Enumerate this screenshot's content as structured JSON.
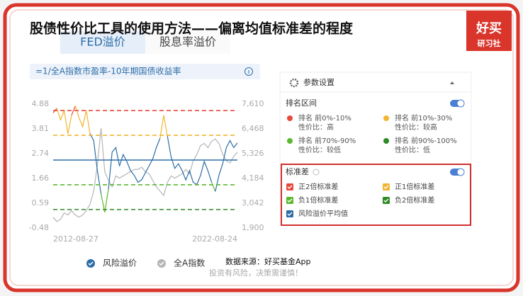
{
  "title": "股债性价比工具的使用方法——偏离均值标准差的程度",
  "logo": {
    "name": "好买",
    "sub": "研习社"
  },
  "tabs": [
    "FED溢价",
    "股息率溢价"
  ],
  "formula": "=1/全A指数市盈率-10年期国债收益率",
  "source": "数据来源：好买基金App",
  "disclaimer": "投资有风险，决策需谨慎！",
  "panel": {
    "title": "参数设置",
    "rank_section": {
      "title": "排名区间",
      "items": [
        {
          "rank": "排名 前0%-10%",
          "label": "性价比：高",
          "color": "#e8493a"
        },
        {
          "rank": "排名 前10%-30%",
          "label": "性价比：较高",
          "color": "#f2b530"
        },
        {
          "rank": "排名 前70%-90%",
          "label": "性价比：较低",
          "color": "#5cb82e"
        },
        {
          "rank": "排名 前90%-100%",
          "label": "性价比：低",
          "color": "#2e8a24"
        }
      ]
    },
    "std_section": {
      "title": "标准差"
    }
  },
  "chart_data": {
    "type": "line",
    "categories": [
      "2012-08-27",
      null,
      null,
      null,
      null,
      null,
      null,
      null,
      null,
      null,
      null,
      null,
      null,
      null,
      null,
      null,
      null,
      null,
      null,
      null,
      null,
      null,
      null,
      null,
      null,
      null,
      null,
      null,
      null,
      null,
      null,
      null,
      null,
      null,
      null,
      null,
      null,
      null,
      null,
      null,
      null,
      null,
      null,
      null,
      null,
      null,
      null,
      null,
      null,
      null,
      "2022-08-24"
    ],
    "series": [
      {
        "name": "全A指数",
        "color": "#b5b5b5",
        "axis": "y2",
        "values": [
          2400,
          2200,
          2300,
          2600,
          2500,
          2700,
          2500,
          2400,
          2500,
          2700,
          3000,
          3600,
          4800,
          6500,
          4500,
          4100,
          3800,
          4300,
          4200,
          4300,
          4400,
          4500,
          4600,
          4600,
          4700,
          4500,
          4400,
          4100,
          3800,
          3600,
          3400,
          4000,
          4300,
          4200,
          4300,
          4400,
          4600,
          4400,
          5000,
          5300,
          5700,
          5800,
          5600,
          5900,
          6000,
          5800,
          5300,
          5000,
          4900,
          5200,
          5400
        ]
      },
      {
        "name": "风险溢价",
        "color": "#2d6ea8",
        "axis": "y",
        "values": [
          4.5,
          4.7,
          4.2,
          4.6,
          3.6,
          4.4,
          4.8,
          4.3,
          3.9,
          4.6,
          3.6,
          3.3,
          2.0,
          1.0,
          0.2,
          1.2,
          2.8,
          3.0,
          2.2,
          2.7,
          2.4,
          2.0,
          1.8,
          1.5,
          1.6,
          1.9,
          2.2,
          2.5,
          3.0,
          3.4,
          4.4,
          3.5,
          2.6,
          2.1,
          2.3,
          2.0,
          1.6,
          2.0,
          1.5,
          1.4,
          1.8,
          2.4,
          2.0,
          1.5,
          1.1,
          1.8,
          2.3,
          3.0,
          3.3,
          3.0,
          3.2
        ]
      }
    ],
    "reference_lines": [
      {
        "name": "正2倍标准差",
        "value": 4.6,
        "color": "#e8493a",
        "style": "dashed"
      },
      {
        "name": "正1倍标准差",
        "value": 3.53,
        "color": "#f2b530",
        "style": "dashed"
      },
      {
        "name": "负1倍标准差",
        "value": 1.39,
        "color": "#5cb82e",
        "style": "dashed"
      },
      {
        "name": "负2倍标准差",
        "value": 0.32,
        "color": "#2e8a24",
        "style": "dashed"
      },
      {
        "name": "风险溢价平均值",
        "value": 2.46,
        "color": "#2d6ea8",
        "style": "solid"
      }
    ],
    "ylim": [
      -0.48,
      4.88
    ],
    "yticks": [
      -0.48,
      0.59,
      1.66,
      2.74,
      3.81,
      4.88
    ],
    "y2lim": [
      1900,
      7610
    ],
    "y2ticks": [
      {
        "value": 1900,
        "label": "1,900"
      },
      {
        "value": 3042,
        "label": "3,042"
      },
      {
        "value": 4184,
        "label": "4,184"
      },
      {
        "value": 5326,
        "label": "5,326"
      },
      {
        "value": 6468,
        "label": "6,468"
      },
      {
        "value": 7610,
        "label": "7,610"
      }
    ],
    "grid": false
  }
}
